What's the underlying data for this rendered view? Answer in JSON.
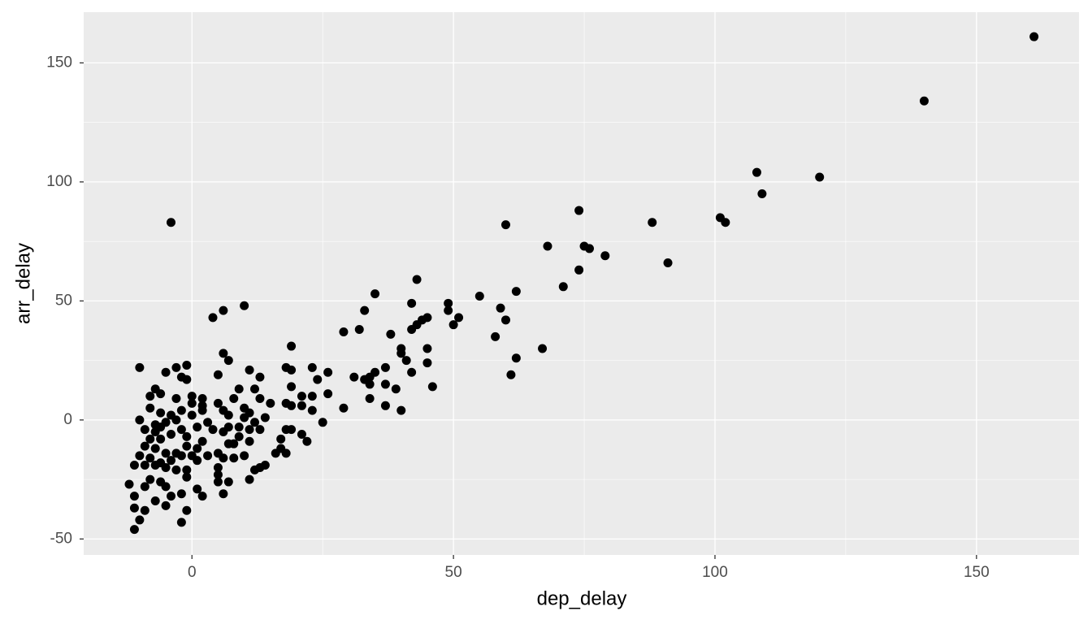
{
  "chart_data": {
    "type": "scatter",
    "x_label": "dep_delay",
    "y_label": "arr_delay",
    "xlim": [
      -20.7,
      169.6
    ],
    "ylim": [
      -56.7,
      171.3
    ],
    "xticks": [
      0,
      50,
      100,
      150
    ],
    "yticks": [
      -50,
      0,
      50,
      100,
      150
    ],
    "x_minor_ticks": [
      25,
      75,
      125
    ],
    "y_minor_ticks": [
      -25,
      25,
      75,
      125
    ],
    "grid": true,
    "color": "#000000",
    "x": [
      161,
      140,
      108,
      120,
      109,
      101,
      102,
      88,
      91,
      74,
      60,
      68,
      75,
      76,
      79,
      74,
      71,
      67,
      62,
      59,
      60,
      58,
      62,
      61,
      55,
      49,
      49,
      51,
      50,
      43,
      42,
      45,
      44,
      43,
      42,
      45,
      45,
      46,
      38,
      40,
      40,
      41,
      42,
      40,
      39,
      37,
      37,
      37,
      35,
      33,
      32,
      29,
      29,
      31,
      33,
      34,
      34,
      35,
      34,
      -4,
      10,
      6,
      4,
      6,
      7,
      5,
      19,
      18,
      19,
      23,
      26,
      24,
      26,
      21,
      23,
      19,
      18,
      19,
      21,
      23,
      15,
      13,
      11,
      9,
      8,
      10,
      11,
      12,
      13,
      14,
      25,
      19,
      18,
      21,
      22,
      17,
      17,
      16,
      18,
      14,
      13,
      12,
      11,
      10,
      8,
      8,
      9,
      11,
      12,
      10,
      13,
      11,
      -10,
      -1,
      -3,
      -5,
      -2,
      -1,
      -7,
      -6,
      -8,
      -3,
      0,
      2,
      2,
      2,
      0,
      -10,
      -8,
      -6,
      -4,
      -2,
      0,
      -3,
      -5,
      -7,
      -7,
      -6,
      -4,
      -2,
      -1,
      1,
      3,
      4,
      2,
      1,
      -1,
      -3,
      -5,
      -7,
      -9,
      -10,
      -11,
      -9,
      -7,
      -5,
      -3,
      -1,
      1,
      3,
      5,
      5,
      5,
      5,
      7,
      6,
      2,
      1,
      -1,
      -2,
      -4,
      -5,
      -7,
      -9,
      -10,
      -11,
      -11,
      -12,
      -11,
      -9,
      -8,
      -6,
      -5,
      -2,
      -1,
      -9,
      -6,
      -8,
      6,
      7,
      9,
      7,
      5,
      6,
      7,
      6,
      -8,
      -6,
      -4,
      -2,
      0
    ],
    "values": [
      161,
      134,
      104,
      102,
      95,
      85,
      83,
      83,
      66,
      88,
      82,
      73,
      73,
      72,
      69,
      63,
      56,
      30,
      54,
      47,
      42,
      35,
      26,
      19,
      52,
      49,
      46,
      43,
      40,
      59,
      49,
      43,
      42,
      40,
      38,
      30,
      24,
      14,
      36,
      30,
      28,
      25,
      20,
      4,
      13,
      22,
      15,
      6,
      53,
      46,
      38,
      37,
      5,
      18,
      17,
      15,
      9,
      20,
      18,
      83,
      48,
      46,
      43,
      28,
      25,
      19,
      31,
      22,
      21,
      22,
      20,
      17,
      11,
      10,
      10,
      14,
      7,
      6,
      6,
      4,
      7,
      18,
      21,
      13,
      9,
      5,
      3,
      13,
      9,
      1,
      -1,
      -4,
      -4,
      -6,
      -9,
      -8,
      -12,
      -14,
      -14,
      -19,
      -20,
      -21,
      -25,
      -15,
      -16,
      -10,
      -7,
      -4,
      -1,
      1,
      -4,
      -9,
      22,
      23,
      22,
      20,
      18,
      17,
      13,
      11,
      10,
      9,
      10,
      9,
      6,
      4,
      7,
      0,
      5,
      3,
      2,
      4,
      2,
      0,
      -1,
      -2,
      -5,
      -8,
      -6,
      -4,
      -7,
      -3,
      -1,
      -4,
      -9,
      -12,
      -11,
      -14,
      -14,
      -12,
      -11,
      -15,
      -19,
      -19,
      -19,
      -20,
      -21,
      -21,
      -17,
      -15,
      -14,
      -20,
      -23,
      -26,
      -26,
      -31,
      -32,
      -29,
      -24,
      -31,
      -32,
      -36,
      -34,
      -38,
      -42,
      -37,
      -46,
      -27,
      -32,
      -28,
      -25,
      -26,
      -28,
      -43,
      -38,
      -4,
      -3,
      -8,
      -5,
      -3,
      -3,
      2,
      7,
      4,
      -10,
      -16,
      -16,
      -18,
      -17,
      -15,
      -15
    ]
  }
}
